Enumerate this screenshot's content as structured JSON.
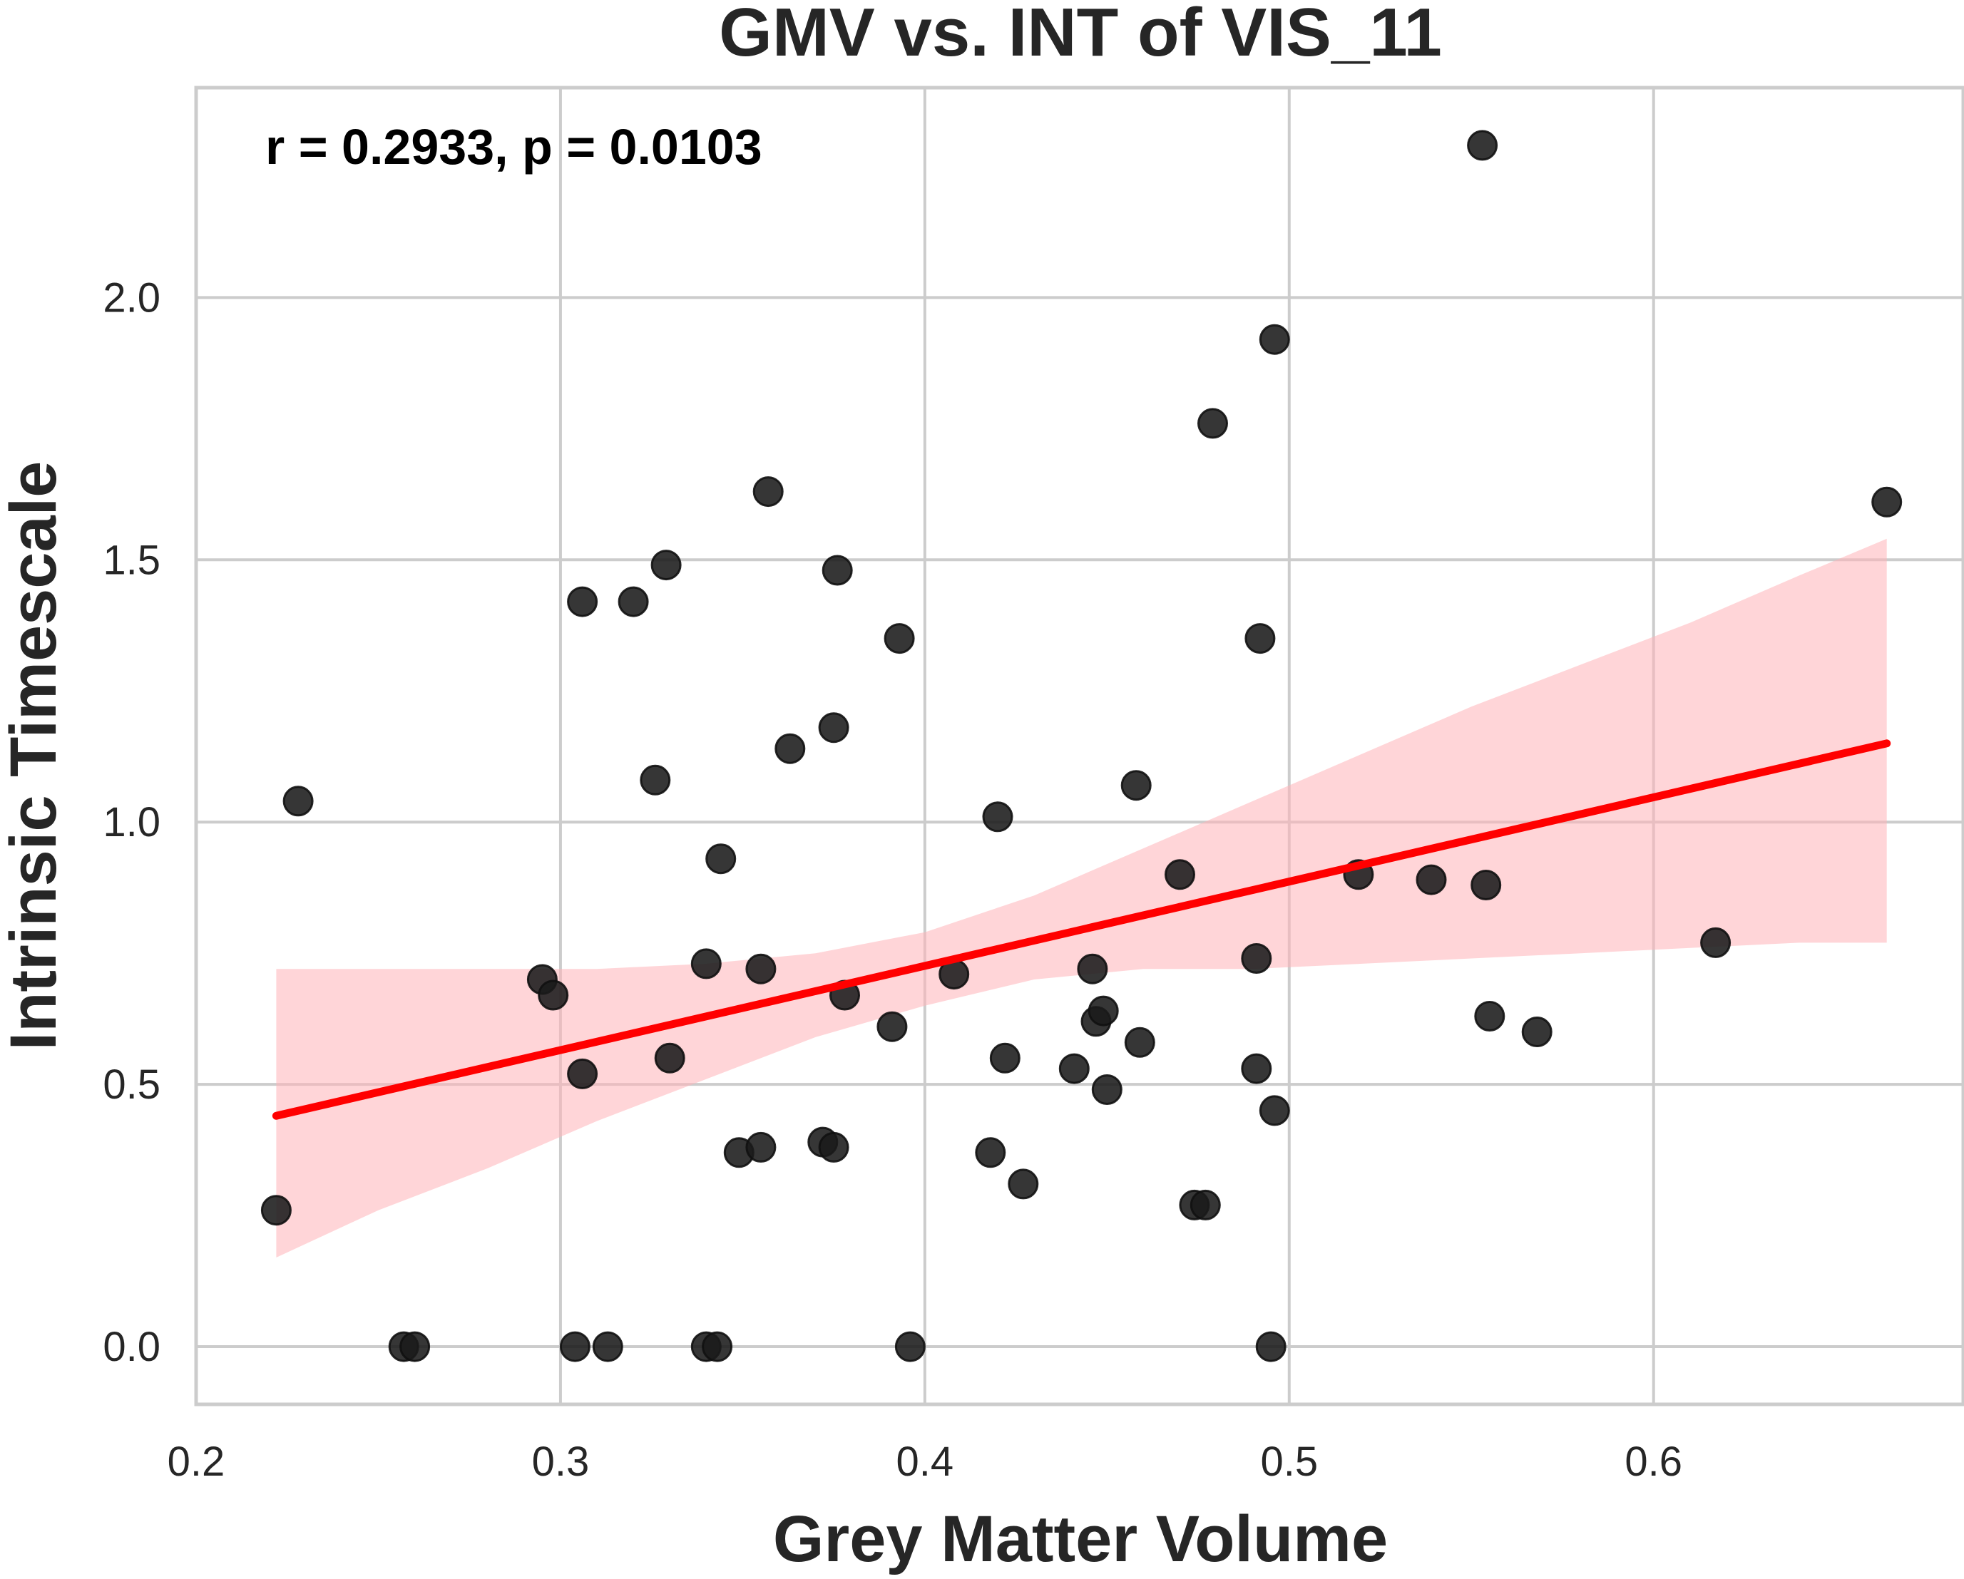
{
  "chart_data": {
    "type": "scatter",
    "title": "GMV vs. INT of VIS_11",
    "xlabel": "Grey Matter Volume",
    "ylabel": "Intrinsic Timescale",
    "annotation": "r = 0.2933, p = 0.0103",
    "xlim": [
      0.2,
      0.685
    ],
    "ylim": [
      -0.11,
      2.4
    ],
    "xticks": [
      "0.2",
      "0.3",
      "0.4",
      "0.5",
      "0.6"
    ],
    "yticks": [
      "0.0",
      "0.5",
      "1.0",
      "1.5",
      "2.0"
    ],
    "grid": true,
    "colors": {
      "points": "#1a1a1a",
      "regression_line": "#ff0000",
      "confidence_band": "#ffb3b8"
    },
    "points": [
      {
        "x": 0.222,
        "y": 0.26
      },
      {
        "x": 0.228,
        "y": 1.04
      },
      {
        "x": 0.257,
        "y": 0.0
      },
      {
        "x": 0.26,
        "y": 0.0
      },
      {
        "x": 0.295,
        "y": 0.7
      },
      {
        "x": 0.298,
        "y": 0.67
      },
      {
        "x": 0.304,
        "y": 0.0
      },
      {
        "x": 0.306,
        "y": 1.42
      },
      {
        "x": 0.306,
        "y": 0.52
      },
      {
        "x": 0.313,
        "y": 0.0
      },
      {
        "x": 0.32,
        "y": 1.42
      },
      {
        "x": 0.326,
        "y": 1.08
      },
      {
        "x": 0.329,
        "y": 1.49
      },
      {
        "x": 0.33,
        "y": 0.55
      },
      {
        "x": 0.34,
        "y": 0.73
      },
      {
        "x": 0.34,
        "y": 0.0
      },
      {
        "x": 0.343,
        "y": 0.0
      },
      {
        "x": 0.344,
        "y": 0.93
      },
      {
        "x": 0.349,
        "y": 0.37
      },
      {
        "x": 0.355,
        "y": 0.38
      },
      {
        "x": 0.355,
        "y": 0.72
      },
      {
        "x": 0.357,
        "y": 1.63
      },
      {
        "x": 0.363,
        "y": 1.14
      },
      {
        "x": 0.372,
        "y": 0.39
      },
      {
        "x": 0.375,
        "y": 0.38
      },
      {
        "x": 0.375,
        "y": 1.18
      },
      {
        "x": 0.376,
        "y": 1.48
      },
      {
        "x": 0.378,
        "y": 0.67
      },
      {
        "x": 0.391,
        "y": 0.61
      },
      {
        "x": 0.393,
        "y": 1.35
      },
      {
        "x": 0.396,
        "y": 0.0
      },
      {
        "x": 0.408,
        "y": 0.71
      },
      {
        "x": 0.418,
        "y": 0.37
      },
      {
        "x": 0.42,
        "y": 1.01
      },
      {
        "x": 0.422,
        "y": 0.55
      },
      {
        "x": 0.427,
        "y": 0.31
      },
      {
        "x": 0.441,
        "y": 0.53
      },
      {
        "x": 0.446,
        "y": 0.72
      },
      {
        "x": 0.447,
        "y": 0.62
      },
      {
        "x": 0.449,
        "y": 0.64
      },
      {
        "x": 0.45,
        "y": 0.49
      },
      {
        "x": 0.458,
        "y": 1.07
      },
      {
        "x": 0.459,
        "y": 0.58
      },
      {
        "x": 0.47,
        "y": 0.9
      },
      {
        "x": 0.474,
        "y": 0.27
      },
      {
        "x": 0.477,
        "y": 0.27
      },
      {
        "x": 0.479,
        "y": 1.76
      },
      {
        "x": 0.491,
        "y": 0.74
      },
      {
        "x": 0.491,
        "y": 0.53
      },
      {
        "x": 0.492,
        "y": 1.35
      },
      {
        "x": 0.495,
        "y": 0.0
      },
      {
        "x": 0.496,
        "y": 0.45
      },
      {
        "x": 0.496,
        "y": 1.92
      },
      {
        "x": 0.519,
        "y": 0.9
      },
      {
        "x": 0.539,
        "y": 0.89
      },
      {
        "x": 0.553,
        "y": 2.29
      },
      {
        "x": 0.554,
        "y": 0.88
      },
      {
        "x": 0.555,
        "y": 0.63
      },
      {
        "x": 0.568,
        "y": 0.6
      },
      {
        "x": 0.617,
        "y": 0.77
      },
      {
        "x": 0.664,
        "y": 1.61
      }
    ],
    "regression_line": {
      "x": [
        0.222,
        0.664
      ],
      "y": [
        0.44,
        1.15
      ]
    },
    "confidence_band": {
      "x": [
        0.222,
        0.25,
        0.28,
        0.31,
        0.34,
        0.37,
        0.4,
        0.43,
        0.46,
        0.49,
        0.52,
        0.55,
        0.58,
        0.61,
        0.64,
        0.664
      ],
      "upper": [
        0.72,
        0.72,
        0.72,
        0.72,
        0.73,
        0.75,
        0.79,
        0.86,
        0.95,
        1.04,
        1.13,
        1.22,
        1.3,
        1.38,
        1.47,
        1.54
      ],
      "lower": [
        0.17,
        0.26,
        0.34,
        0.43,
        0.51,
        0.59,
        0.65,
        0.7,
        0.72,
        0.72,
        0.73,
        0.74,
        0.75,
        0.76,
        0.77,
        0.77
      ]
    }
  }
}
